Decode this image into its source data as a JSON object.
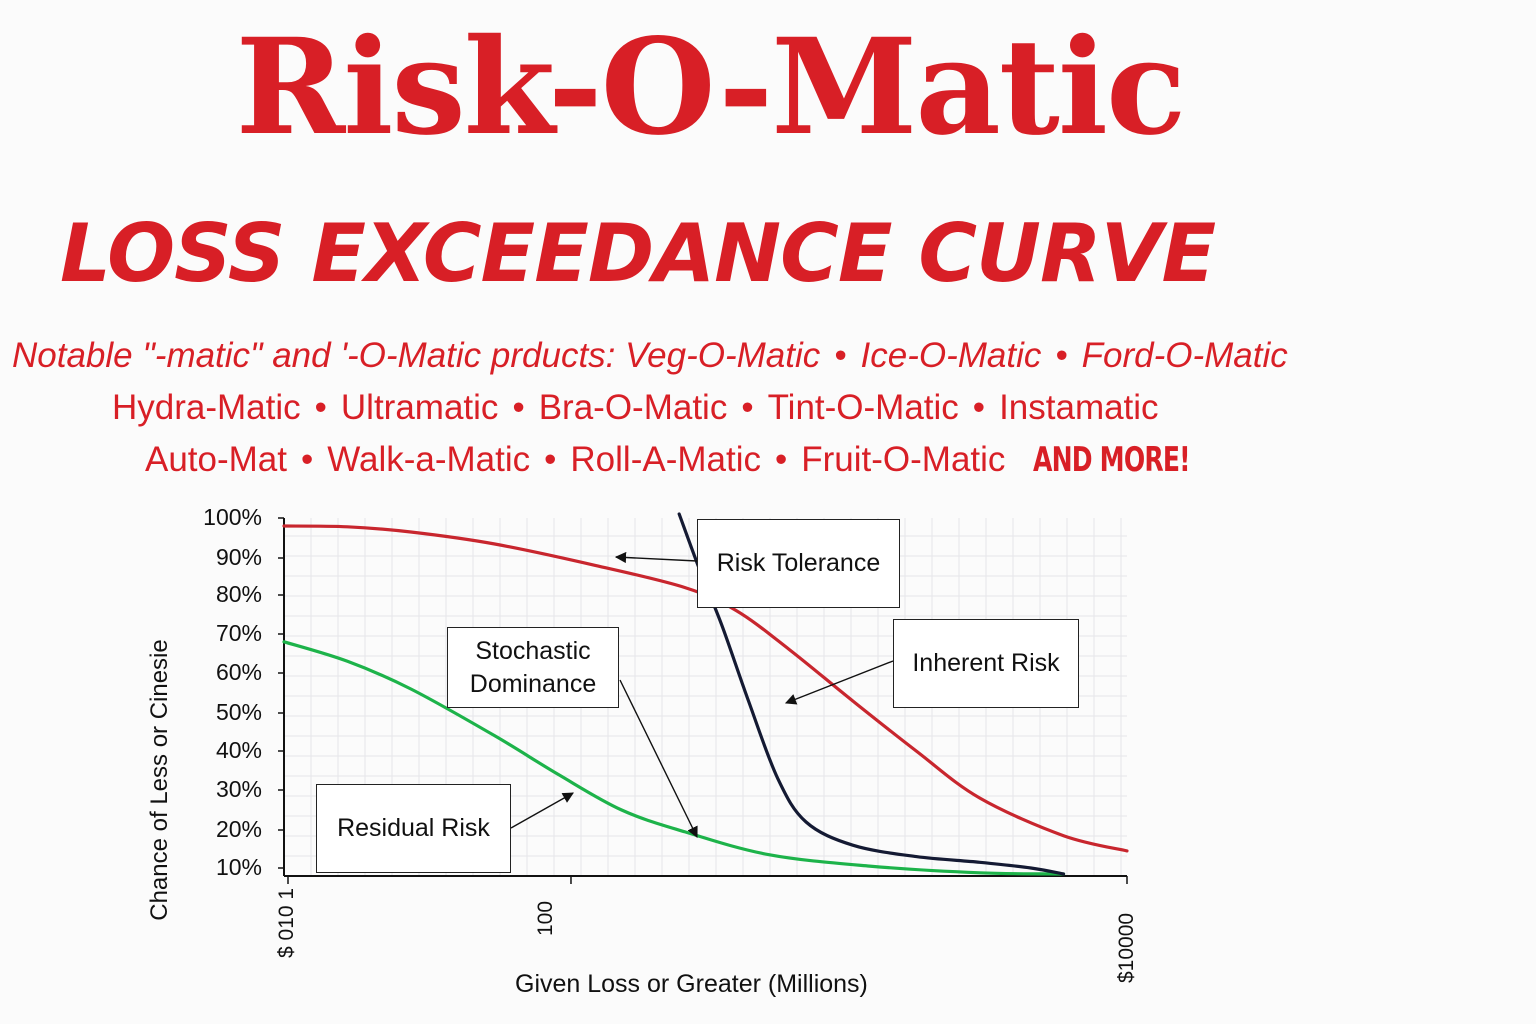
{
  "colors": {
    "brand_red": "#d81f26",
    "inherent": "#c8262e",
    "residual": "#1db34a",
    "tolerance": "#141a33",
    "text": "#111111"
  },
  "header": {
    "title": "Risk-O-Matic",
    "subtitle": "LOSS EXCEEDANCE CURVE"
  },
  "products": {
    "line1": "Notable \"-matic\" and  '-O-Matic prducts: Veg-O-Matic",
    "line1_items": [
      "Ice-O-Matic",
      "Ford-O-Matic"
    ],
    "line2_items": [
      "Hydra-Matic",
      "Ultramatic",
      "Bra-O-Matic",
      "Tint-O-Matic",
      "Instamatic"
    ],
    "line3_items": [
      "Auto-Mat",
      "Walk-a-Matic",
      "Roll-A-Matic",
      "Fruit-O-Matic"
    ],
    "separator": "•",
    "more": "AND MORE!"
  },
  "chart_data": {
    "type": "line",
    "title": "LOSS EXCEEDANCE CURVE",
    "xlabel": "Given Loss or Greater (Millions)",
    "ylabel": "Chance of Less or Cinesie",
    "xscale": "log",
    "x_tick_labels": [
      "$ 010 1",
      "100",
      "$10000"
    ],
    "y_tick_labels": [
      "100%",
      "90%",
      "80%",
      "70%",
      "60%",
      "50%",
      "40%",
      "30%",
      "20%",
      "10%"
    ],
    "ylim": [
      10,
      100
    ],
    "grid": true,
    "series": [
      {
        "name": "Inherent Risk",
        "color": "#c8262e",
        "points": [
          [
            1,
            98
          ],
          [
            2,
            97.8
          ],
          [
            4,
            96.5
          ],
          [
            10,
            93.5
          ],
          [
            30,
            88
          ],
          [
            80,
            82
          ],
          [
            140,
            76
          ],
          [
            250,
            66
          ],
          [
            500,
            53
          ],
          [
            1000,
            40
          ],
          [
            2000,
            28
          ],
          [
            5000,
            18.5
          ],
          [
            10000,
            14.5
          ]
        ]
      },
      {
        "name": "Residual Risk",
        "color": "#1db34a",
        "points": [
          [
            1,
            68
          ],
          [
            2,
            63
          ],
          [
            4,
            56
          ],
          [
            10,
            44
          ],
          [
            20,
            34
          ],
          [
            40,
            25
          ],
          [
            80,
            19.5
          ],
          [
            200,
            13.5
          ],
          [
            600,
            10.5
          ],
          [
            2000,
            8.8
          ],
          [
            5000,
            8.5
          ]
        ]
      },
      {
        "name": "Risk Tolerance",
        "color": "#141a33",
        "points": [
          [
            75,
            101
          ],
          [
            95,
            86
          ],
          [
            120,
            72
          ],
          [
            160,
            53
          ],
          [
            220,
            33
          ],
          [
            300,
            22
          ],
          [
            500,
            16
          ],
          [
            1000,
            13
          ],
          [
            2000,
            11.5
          ],
          [
            3500,
            10
          ],
          [
            5000,
            8.5
          ]
        ]
      }
    ],
    "annotations": [
      {
        "label": "Risk Tolerance"
      },
      {
        "label": "Inherent Risk"
      },
      {
        "label": "Stochastic Dominance"
      },
      {
        "label": "Residual Risk"
      }
    ]
  }
}
